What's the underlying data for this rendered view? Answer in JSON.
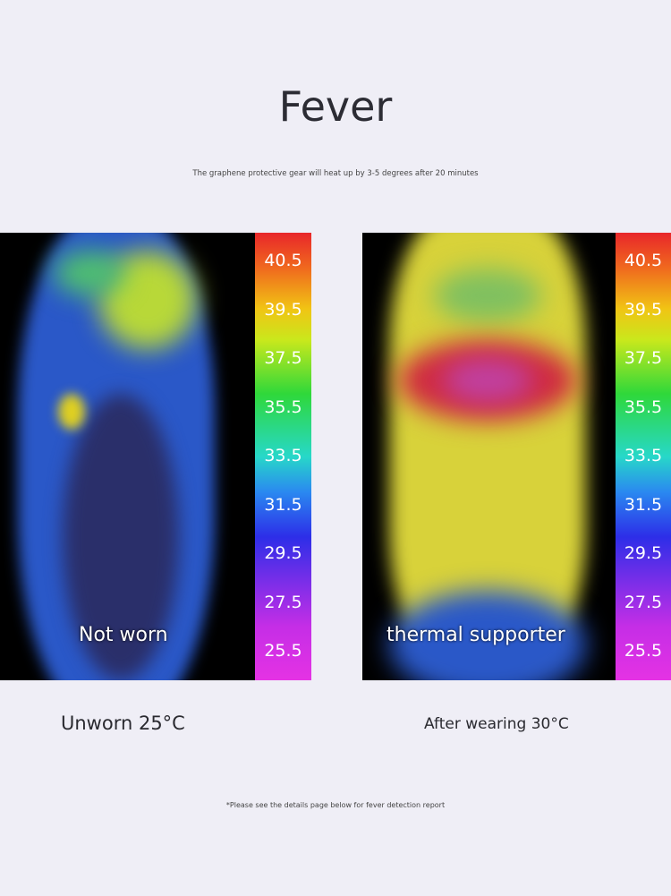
{
  "title": "Fever",
  "subtitle": "The graphene protective gear will heat up by 3-5 degrees after 20 minutes",
  "scale_labels": [
    "40.5",
    "39.5",
    "37.5",
    "35.5",
    "33.5",
    "31.5",
    "29.5",
    "27.5",
    "25.5"
  ],
  "left": {
    "overlay_label": "Not worn",
    "caption": "Unworn 25°C"
  },
  "right": {
    "overlay_label": "thermal supporter",
    "caption": "After wearing 30°C"
  },
  "footnote": "*Please see the details page below for fever detection report"
}
